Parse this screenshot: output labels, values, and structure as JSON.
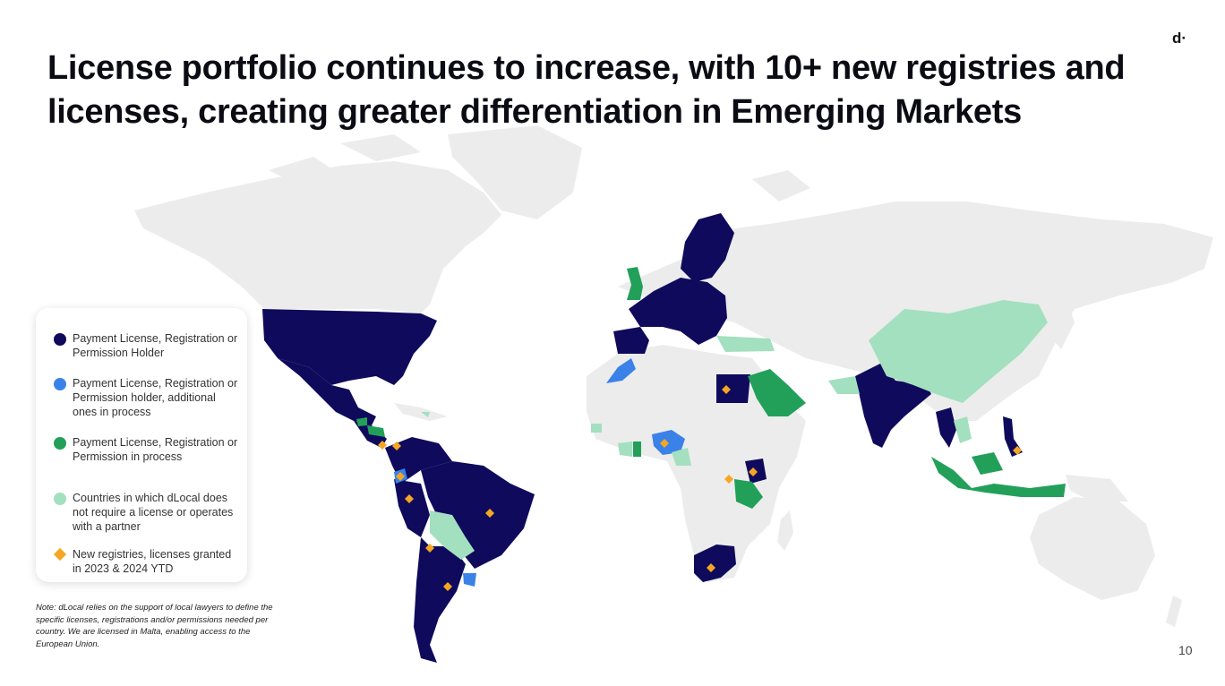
{
  "slide": {
    "title": "License portfolio continues to increase, with 10+ new registries and licenses, creating greater differentiation in Emerging Markets",
    "logo": "d·",
    "page_number": "10",
    "note": "Note: dLocal relies on the support of  local lawyers to define the specific licenses, registrations and/or permissions needed  per country. We are licensed in Malta, enabling access to the European Union."
  },
  "colors": {
    "land": "#ececec",
    "holder": "#0f0a5c",
    "holder_in_process": "#3b82e8",
    "in_process": "#22a05a",
    "no_license_required": "#a3e0bf",
    "new_registry": "#f5a623"
  },
  "legend": [
    {
      "label": "Payment License, Registration or Permission Holder",
      "symbol": "circle",
      "color": "#0f0a5c"
    },
    {
      "label": "Payment License, Registration or Permission holder, additional ones in process",
      "symbol": "circle",
      "color": "#3b82e8"
    },
    {
      "label": "Payment License, Registration or Permission in process",
      "symbol": "circle",
      "color": "#22a05a"
    },
    {
      "label": "Countries in which dLocal does not require a license or operates with a partner",
      "symbol": "circle",
      "color": "#a3e0bf"
    },
    {
      "label": "New registries, licenses granted in 2023 & 2024 YTD",
      "symbol": "diamond",
      "color": "#f5a623"
    }
  ]
}
